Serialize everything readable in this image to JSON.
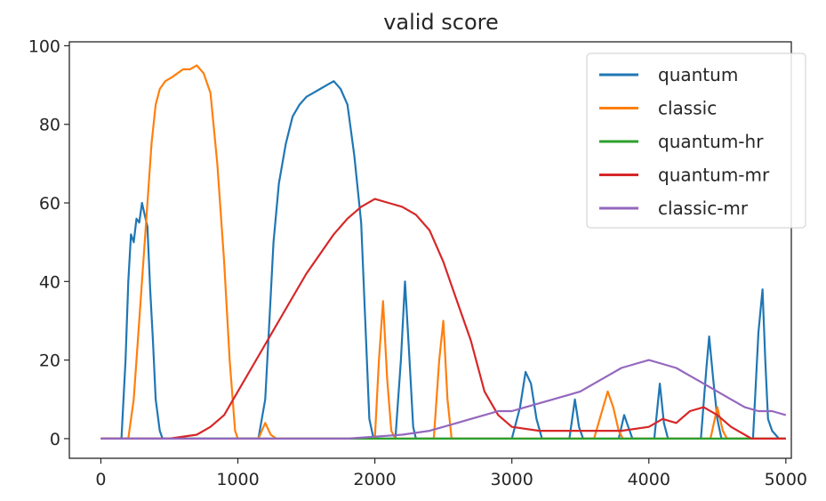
{
  "chart_data": {
    "type": "line",
    "title": "valid score",
    "xlabel": "",
    "ylabel": "",
    "xlim": [
      -230,
      5040
    ],
    "ylim": [
      -5,
      101
    ],
    "xticks": [
      0,
      1000,
      2000,
      3000,
      4000,
      5000
    ],
    "yticks": [
      0,
      20,
      40,
      60,
      80,
      100
    ],
    "xtick_labels": [
      "0",
      "1000",
      "2000",
      "3000",
      "4000",
      "5000"
    ],
    "ytick_labels": [
      "0",
      "20",
      "40",
      "60",
      "80",
      "100"
    ],
    "grid": false,
    "legend_position": "top-right",
    "series": [
      {
        "name": "quantum",
        "color": "#1f77b4",
        "points": [
          [
            0,
            0
          ],
          [
            150,
            0
          ],
          [
            180,
            20
          ],
          [
            200,
            40
          ],
          [
            220,
            52
          ],
          [
            240,
            50
          ],
          [
            260,
            56
          ],
          [
            280,
            55
          ],
          [
            300,
            60
          ],
          [
            320,
            57
          ],
          [
            340,
            54
          ],
          [
            360,
            38
          ],
          [
            380,
            25
          ],
          [
            400,
            10
          ],
          [
            430,
            2
          ],
          [
            450,
            0
          ],
          [
            1150,
            0
          ],
          [
            1200,
            10
          ],
          [
            1230,
            30
          ],
          [
            1260,
            50
          ],
          [
            1300,
            65
          ],
          [
            1350,
            75
          ],
          [
            1400,
            82
          ],
          [
            1450,
            85
          ],
          [
            1500,
            87
          ],
          [
            1550,
            88
          ],
          [
            1600,
            89
          ],
          [
            1650,
            90
          ],
          [
            1700,
            91
          ],
          [
            1750,
            89
          ],
          [
            1800,
            85
          ],
          [
            1850,
            72
          ],
          [
            1900,
            55
          ],
          [
            1930,
            30
          ],
          [
            1960,
            5
          ],
          [
            1990,
            0
          ],
          [
            2150,
            0
          ],
          [
            2190,
            20
          ],
          [
            2220,
            40
          ],
          [
            2250,
            22
          ],
          [
            2280,
            3
          ],
          [
            2300,
            0
          ],
          [
            3000,
            0
          ],
          [
            3060,
            8
          ],
          [
            3100,
            17
          ],
          [
            3140,
            14
          ],
          [
            3180,
            5
          ],
          [
            3220,
            0
          ],
          [
            3420,
            0
          ],
          [
            3460,
            10
          ],
          [
            3490,
            3
          ],
          [
            3520,
            0
          ],
          [
            3780,
            0
          ],
          [
            3820,
            6
          ],
          [
            3850,
            3
          ],
          [
            3880,
            0
          ],
          [
            4040,
            0
          ],
          [
            4080,
            14
          ],
          [
            4110,
            4
          ],
          [
            4140,
            0
          ],
          [
            4380,
            0
          ],
          [
            4420,
            18
          ],
          [
            4440,
            26
          ],
          [
            4470,
            15
          ],
          [
            4500,
            5
          ],
          [
            4530,
            0
          ],
          [
            4760,
            0
          ],
          [
            4800,
            27
          ],
          [
            4830,
            38
          ],
          [
            4850,
            20
          ],
          [
            4870,
            5
          ],
          [
            4900,
            2
          ],
          [
            4950,
            0
          ],
          [
            5000,
            0
          ]
        ]
      },
      {
        "name": "classic",
        "color": "#ff7f0e",
        "points": [
          [
            0,
            0
          ],
          [
            200,
            0
          ],
          [
            240,
            10
          ],
          [
            280,
            30
          ],
          [
            330,
            55
          ],
          [
            370,
            75
          ],
          [
            400,
            85
          ],
          [
            430,
            89
          ],
          [
            470,
            91
          ],
          [
            520,
            92
          ],
          [
            560,
            93
          ],
          [
            600,
            94
          ],
          [
            650,
            94
          ],
          [
            700,
            95
          ],
          [
            750,
            93
          ],
          [
            800,
            88
          ],
          [
            850,
            70
          ],
          [
            900,
            45
          ],
          [
            940,
            20
          ],
          [
            980,
            2
          ],
          [
            1000,
            0
          ],
          [
            1150,
            0
          ],
          [
            1200,
            4
          ],
          [
            1240,
            1
          ],
          [
            1280,
            0
          ],
          [
            2000,
            0
          ],
          [
            2030,
            20
          ],
          [
            2060,
            35
          ],
          [
            2090,
            15
          ],
          [
            2120,
            2
          ],
          [
            2150,
            0
          ],
          [
            2430,
            0
          ],
          [
            2470,
            20
          ],
          [
            2500,
            30
          ],
          [
            2530,
            10
          ],
          [
            2560,
            0
          ],
          [
            3600,
            0
          ],
          [
            3650,
            6
          ],
          [
            3700,
            12
          ],
          [
            3740,
            8
          ],
          [
            3780,
            2
          ],
          [
            3810,
            0
          ],
          [
            4450,
            0
          ],
          [
            4500,
            8
          ],
          [
            4540,
            2
          ],
          [
            4570,
            0
          ],
          [
            5000,
            0
          ]
        ]
      },
      {
        "name": "quantum-hr",
        "color": "#2ca02c",
        "points": [
          [
            0,
            0
          ],
          [
            5000,
            0
          ]
        ]
      },
      {
        "name": "quantum-mr",
        "color": "#d62728",
        "points": [
          [
            0,
            0
          ],
          [
            500,
            0
          ],
          [
            700,
            1
          ],
          [
            800,
            3
          ],
          [
            900,
            6
          ],
          [
            1000,
            12
          ],
          [
            1100,
            18
          ],
          [
            1200,
            24
          ],
          [
            1300,
            30
          ],
          [
            1400,
            36
          ],
          [
            1500,
            42
          ],
          [
            1600,
            47
          ],
          [
            1700,
            52
          ],
          [
            1800,
            56
          ],
          [
            1900,
            59
          ],
          [
            2000,
            61
          ],
          [
            2100,
            60
          ],
          [
            2200,
            59
          ],
          [
            2300,
            57
          ],
          [
            2400,
            53
          ],
          [
            2500,
            45
          ],
          [
            2600,
            35
          ],
          [
            2700,
            25
          ],
          [
            2800,
            12
          ],
          [
            2900,
            6
          ],
          [
            3000,
            3
          ],
          [
            3200,
            2
          ],
          [
            3400,
            2
          ],
          [
            3600,
            2
          ],
          [
            3800,
            2
          ],
          [
            4000,
            3
          ],
          [
            4100,
            5
          ],
          [
            4200,
            4
          ],
          [
            4300,
            7
          ],
          [
            4400,
            8
          ],
          [
            4500,
            6
          ],
          [
            4600,
            3
          ],
          [
            4700,
            1
          ],
          [
            4750,
            0
          ],
          [
            5000,
            0
          ]
        ]
      },
      {
        "name": "classic-mr",
        "color": "#9467bd",
        "points": [
          [
            0,
            0
          ],
          [
            1800,
            0
          ],
          [
            2000,
            0.5
          ],
          [
            2200,
            1
          ],
          [
            2400,
            2
          ],
          [
            2500,
            3
          ],
          [
            2600,
            4
          ],
          [
            2700,
            5
          ],
          [
            2800,
            6
          ],
          [
            2900,
            7
          ],
          [
            3000,
            7
          ],
          [
            3100,
            8
          ],
          [
            3200,
            9
          ],
          [
            3300,
            10
          ],
          [
            3400,
            11
          ],
          [
            3500,
            12
          ],
          [
            3600,
            14
          ],
          [
            3700,
            16
          ],
          [
            3800,
            18
          ],
          [
            3900,
            19
          ],
          [
            4000,
            20
          ],
          [
            4100,
            19
          ],
          [
            4200,
            18
          ],
          [
            4300,
            16
          ],
          [
            4400,
            14
          ],
          [
            4500,
            12
          ],
          [
            4600,
            10
          ],
          [
            4700,
            8
          ],
          [
            4800,
            7
          ],
          [
            4900,
            7
          ],
          [
            5000,
            6
          ]
        ]
      }
    ]
  }
}
